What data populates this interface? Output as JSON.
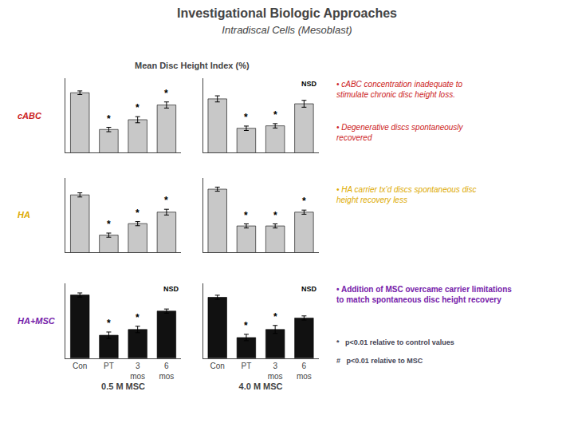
{
  "title": "Investigational Biologic Approaches",
  "subtitle": "Intradiscal Cells (Mesoblast)",
  "annotations": [
    {
      "text": "Mean Disc Height Index (%)"
    },
    {
      "text": "cABC",
      "color": "#cc2222"
    },
    {
      "text": "HA",
      "color": "#ddaa00"
    },
    {
      "text": "HA+MSC",
      "color": "#7722aa"
    },
    {
      "text": "• cABC concentration inadequate to\nstimulate chronic disc height loss.",
      "color": "#cc2222"
    },
    {
      "text": "• Degenerative discs spontaneously\nrecovered",
      "color": "#cc2222"
    },
    {
      "text": "• HA carrier tx’d discs spontaneous disc\nheight recovery less",
      "color": "#ddaa00"
    },
    {
      "text": "• Addition of MSC overcame carrier limitations\nto match spontaneous disc height recovery",
      "color": "#7722aa"
    },
    {
      "text": "*   p<0.01 relative to control values",
      "color": "#444455"
    },
    {
      "text": "#   p<0.01 relative to MSC",
      "color": "#444455"
    }
  ],
  "chart_data": [
    {
      "type": "bar",
      "categories": [
        "Con",
        "PT",
        "3\nmos",
        "6\nmos"
      ],
      "values": [
        0.92,
        0.62,
        0.7,
        0.82
      ],
      "errors": [
        0.015,
        0.018,
        0.025,
        0.025
      ],
      "color": "#c8c8c8",
      "ylim": [
        0.43,
        1.04
      ],
      "grid": false,
      "tick_labels": false,
      "annotations": [
        {
          "category": "PT",
          "text": "*"
        },
        {
          "category": "3\nmos",
          "text": "*"
        },
        {
          "category": "6\nmos",
          "text": "*"
        }
      ]
    },
    {
      "type": "bar",
      "categories": [
        "Con",
        "PT",
        "3\nmos",
        "6\nmos"
      ],
      "values": [
        0.87,
        0.63,
        0.65,
        0.83
      ],
      "errors": [
        0.025,
        0.018,
        0.018,
        0.028
      ],
      "color": "#c8c8c8",
      "ylim": [
        0.43,
        1.04
      ],
      "grid": false,
      "tick_labels": false,
      "annotations": [
        {
          "category": "PT",
          "text": "*"
        },
        {
          "category": "3\nmos",
          "text": "*"
        },
        {
          "text": "NSD"
        }
      ]
    },
    {
      "type": "bar",
      "categories": [
        "Con",
        "PT",
        "3\nmos",
        "6\nmos"
      ],
      "values": [
        0.85,
        0.5,
        0.6,
        0.7
      ],
      "errors": [
        0.018,
        0.018,
        0.018,
        0.025
      ],
      "color": "#c8c8c8",
      "ylim": [
        0.35,
        1.0
      ],
      "grid": false,
      "tick_labels": false,
      "annotations": [
        {
          "category": "PT",
          "text": "*"
        },
        {
          "category": "3\nmos",
          "text": "*"
        },
        {
          "category": "6\nmos",
          "text": "*"
        }
      ]
    },
    {
      "type": "bar",
      "categories": [
        "Con",
        "PT",
        "3\nmos",
        "6\nmos"
      ],
      "values": [
        0.9,
        0.58,
        0.58,
        0.7
      ],
      "errors": [
        0.018,
        0.018,
        0.018,
        0.018
      ],
      "color": "#c8c8c8",
      "ylim": [
        0.35,
        1.0
      ],
      "grid": false,
      "tick_labels": false,
      "annotations": [
        {
          "category": "PT",
          "text": "*"
        },
        {
          "category": "3\nmos",
          "text": "*"
        },
        {
          "category": "6\nmos",
          "text": "*"
        }
      ]
    },
    {
      "type": "bar",
      "categories": [
        "Con",
        "PT",
        "3\nmos",
        "6\nmos"
      ],
      "values": [
        0.9,
        0.55,
        0.6,
        0.76
      ],
      "errors": [
        0.018,
        0.028,
        0.028,
        0.018
      ],
      "color": "#111111",
      "ylim": [
        0.35,
        1.0
      ],
      "grid": false,
      "tick_labels": "x",
      "xlabel": "0.5 M MSC",
      "annotations": [
        {
          "category": "PT",
          "text": "*"
        },
        {
          "category": "3\nmos",
          "text": "*"
        },
        {
          "text": "NSD"
        }
      ]
    },
    {
      "type": "bar",
      "categories": [
        "Con",
        "PT",
        "3\nmos",
        "6\nmos"
      ],
      "values": [
        0.88,
        0.53,
        0.6,
        0.7
      ],
      "errors": [
        0.018,
        0.028,
        0.035,
        0.018
      ],
      "color": "#111111",
      "ylim": [
        0.35,
        1.0
      ],
      "grid": false,
      "tick_labels": "x",
      "xlabel": "4.0 M MSC",
      "annotations": [
        {
          "category": "PT",
          "text": "*"
        },
        {
          "category": "3\nmos",
          "text": "*"
        },
        {
          "text": "NSD"
        }
      ]
    }
  ]
}
